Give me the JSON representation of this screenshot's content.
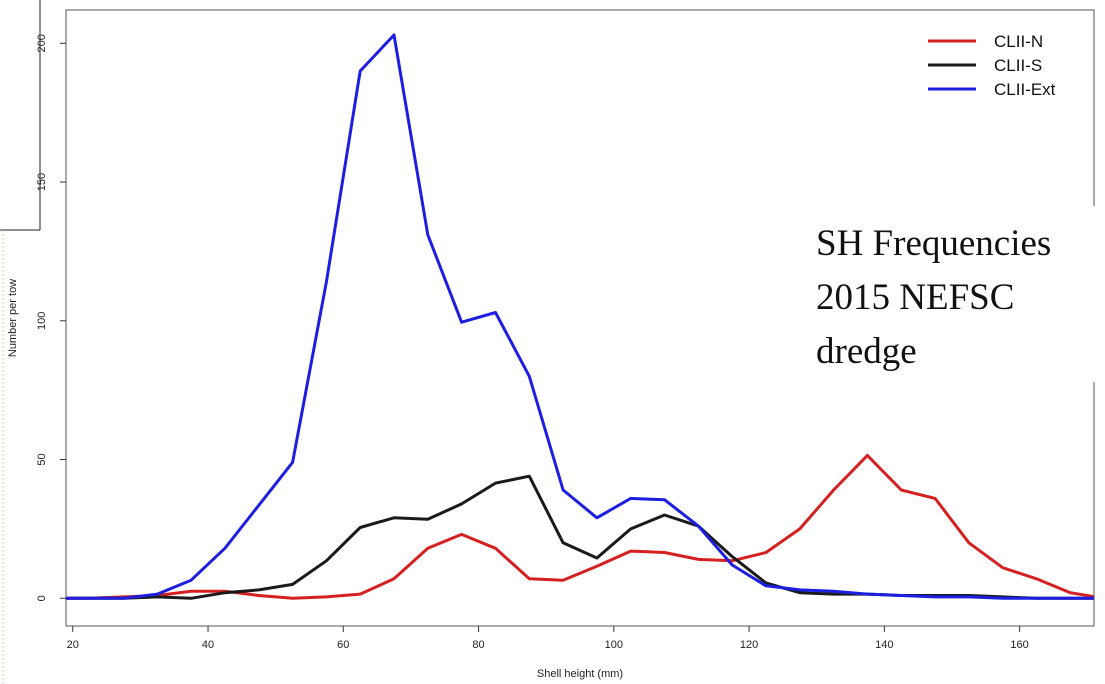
{
  "chart_data": {
    "type": "line",
    "xlabel": "Shell height (mm)",
    "ylabel": "Number per tow",
    "xlim": [
      19,
      171
    ],
    "ylim": [
      -10,
      212
    ],
    "xticks": [
      20,
      40,
      60,
      80,
      100,
      120,
      140,
      160
    ],
    "yticks": [
      0,
      50,
      100,
      150,
      200
    ],
    "legend_position": "top-right",
    "x": [
      17.5,
      22.5,
      27.5,
      32.5,
      37.5,
      42.5,
      47.5,
      52.5,
      57.5,
      62.5,
      67.5,
      72.5,
      77.5,
      82.5,
      87.5,
      92.5,
      97.5,
      102.5,
      107.5,
      112.5,
      117.5,
      122.5,
      127.5,
      132.5,
      137.5,
      142.5,
      147.5,
      152.5,
      157.5,
      162.5,
      167.5,
      172.5
    ],
    "series": [
      {
        "name": "CLII-N",
        "color": "#d62020",
        "values": [
          0,
          0,
          0.5,
          1,
          2.5,
          2.5,
          1,
          0,
          0.5,
          1.5,
          7,
          18,
          23,
          18,
          7,
          6.5,
          11.5,
          17,
          16.5,
          14,
          13.5,
          16.5,
          25,
          39,
          51.5,
          39,
          36,
          20,
          11,
          7,
          2,
          0
        ]
      },
      {
        "name": "CLII-S",
        "color": "#1a1a1a",
        "values": [
          0,
          0,
          0,
          0.5,
          0,
          2,
          3,
          5,
          13.5,
          25.5,
          29,
          28.5,
          34,
          41.5,
          44,
          20,
          14.5,
          25,
          30,
          26,
          15,
          5.5,
          2,
          1.5,
          1.5,
          1,
          1,
          1,
          0.5,
          0,
          0,
          0
        ]
      },
      {
        "name": "CLII-Ext",
        "color": "#1e1ee0",
        "values": [
          0,
          0,
          0,
          1.5,
          6.5,
          18,
          33.5,
          49,
          114,
          190,
          203,
          131,
          99.5,
          103,
          80,
          39,
          29,
          36,
          35.5,
          26,
          12,
          4.5,
          3,
          2.5,
          1.5,
          1,
          0.5,
          0.5,
          0,
          0,
          0,
          0
        ]
      }
    ]
  },
  "annotation": {
    "lines": [
      "SH Frequencies",
      "2015 NEFSC",
      "dredge"
    ]
  }
}
